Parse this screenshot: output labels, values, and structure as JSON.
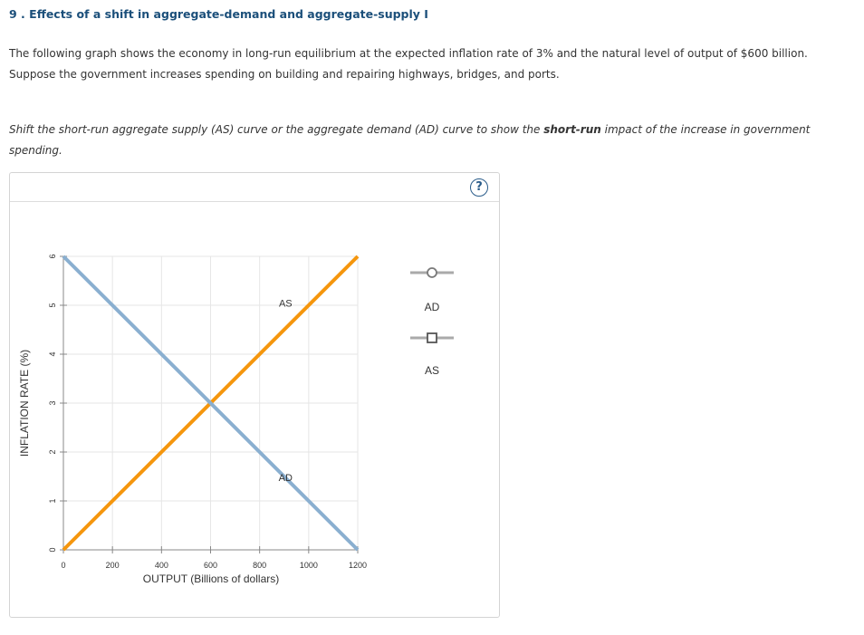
{
  "question": {
    "title": "9 . Effects of a shift in aggregate-demand and aggregate-supply I",
    "intro_line1": "The following graph shows the economy in long-run equilibrium at the expected inflation rate of 3% and the natural level of output of $600 billion.",
    "intro_line2": "Suppose the government increases spending on building and repairing highways, bridges, and ports.",
    "instruction_pre": "Shift the short-run aggregate supply (AS) curve or the aggregate demand (AD) curve to show the ",
    "instruction_bold": "short-run",
    "instruction_post": " impact of the increase in government",
    "instruction_line2": "spending."
  },
  "panel": {
    "help_icon": "question-mark-icon",
    "help_glyph": "?"
  },
  "colors": {
    "ad": "#8aafd0",
    "as": "#f5960d",
    "grid": "#e6e6e6",
    "axis": "#888888",
    "palette_line": "#aaaaaa"
  },
  "palette": {
    "ad": {
      "label": "AD",
      "marker": "circle"
    },
    "as": {
      "label": "AS",
      "marker": "square"
    }
  },
  "chart_data": {
    "type": "line",
    "xlabel": "OUTPUT (Billions of dollars)",
    "ylabel": "INFLATION RATE (%)",
    "xlim": [
      0,
      1200
    ],
    "ylim": [
      0,
      6
    ],
    "x_ticks": [
      0,
      200,
      400,
      600,
      800,
      1000,
      1200
    ],
    "y_ticks": [
      0,
      1,
      2,
      3,
      4,
      5,
      6
    ],
    "grid": true,
    "series": [
      {
        "name": "AS",
        "x": [
          0,
          1200
        ],
        "y": [
          0,
          6
        ],
        "color": "#f5960d",
        "label_at": [
          950,
          5.05
        ]
      },
      {
        "name": "AD",
        "x": [
          0,
          1200
        ],
        "y": [
          6,
          0
        ],
        "color": "#8aafd0",
        "label_at": [
          950,
          1.48
        ]
      }
    ]
  }
}
